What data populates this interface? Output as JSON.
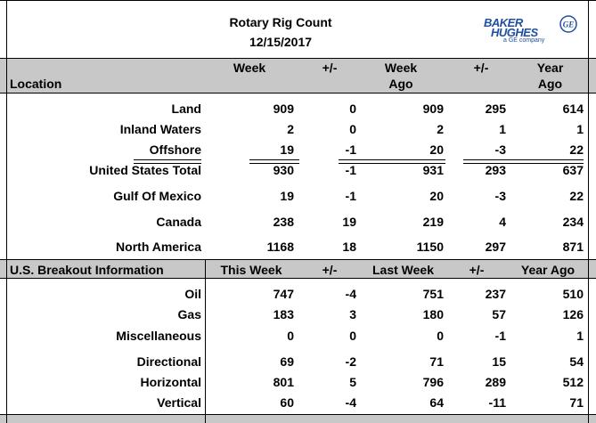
{
  "header": {
    "title": "Rotary Rig Count",
    "date": "12/15/2017",
    "logo": {
      "line1": "BAKER",
      "line2": "HUGHES",
      "sub": "a GE company",
      "badge": "GE",
      "color": "#1f4fa0"
    }
  },
  "section1": {
    "headers": {
      "location": "Location",
      "week": "Week",
      "pm1": "+/-",
      "week_ago_1": "Week",
      "week_ago_2": "Ago",
      "pm2": "+/-",
      "year_ago_1": "Year",
      "year_ago_2": "Ago"
    },
    "rows": [
      {
        "label": "Land",
        "week": "909",
        "pm1": "0",
        "weekago": "909",
        "pm2": "295",
        "yearago": "614"
      },
      {
        "label": "Inland Waters",
        "week": "2",
        "pm1": "0",
        "weekago": "2",
        "pm2": "1",
        "yearago": "1"
      },
      {
        "label": "Offshore",
        "week": "19",
        "pm1": "-1",
        "weekago": "20",
        "pm2": "-3",
        "yearago": "22"
      },
      {
        "label": "United States Total",
        "week": "930",
        "pm1": "-1",
        "weekago": "931",
        "pm2": "293",
        "yearago": "637"
      },
      {
        "label": "Gulf Of Mexico",
        "week": "19",
        "pm1": "-1",
        "weekago": "20",
        "pm2": "-3",
        "yearago": "22"
      },
      {
        "label": "Canada",
        "week": "238",
        "pm1": "19",
        "weekago": "219",
        "pm2": "4",
        "yearago": "234"
      },
      {
        "label": "North America",
        "week": "1168",
        "pm1": "18",
        "weekago": "1150",
        "pm2": "297",
        "yearago": "871"
      }
    ]
  },
  "section2": {
    "headers": {
      "title": "U.S. Breakout Information",
      "this_week": "This Week",
      "pm1": "+/-",
      "last_week": "Last Week",
      "pm2": "+/-",
      "year_ago": "Year Ago"
    },
    "rows": [
      {
        "label": "Oil",
        "week": "747",
        "pm1": "-4",
        "weekago": "751",
        "pm2": "237",
        "yearago": "510"
      },
      {
        "label": "Gas",
        "week": "183",
        "pm1": "3",
        "weekago": "180",
        "pm2": "57",
        "yearago": "126"
      },
      {
        "label": "Miscellaneous",
        "week": "0",
        "pm1": "0",
        "weekago": "0",
        "pm2": "-1",
        "yearago": "1"
      },
      {
        "label": "Directional",
        "week": "69",
        "pm1": "-2",
        "weekago": "71",
        "pm2": "15",
        "yearago": "54"
      },
      {
        "label": "Horizontal",
        "week": "801",
        "pm1": "5",
        "weekago": "796",
        "pm2": "289",
        "yearago": "512"
      },
      {
        "label": "Vertical",
        "week": "60",
        "pm1": "-4",
        "weekago": "64",
        "pm2": "-11",
        "yearago": "71"
      }
    ]
  }
}
